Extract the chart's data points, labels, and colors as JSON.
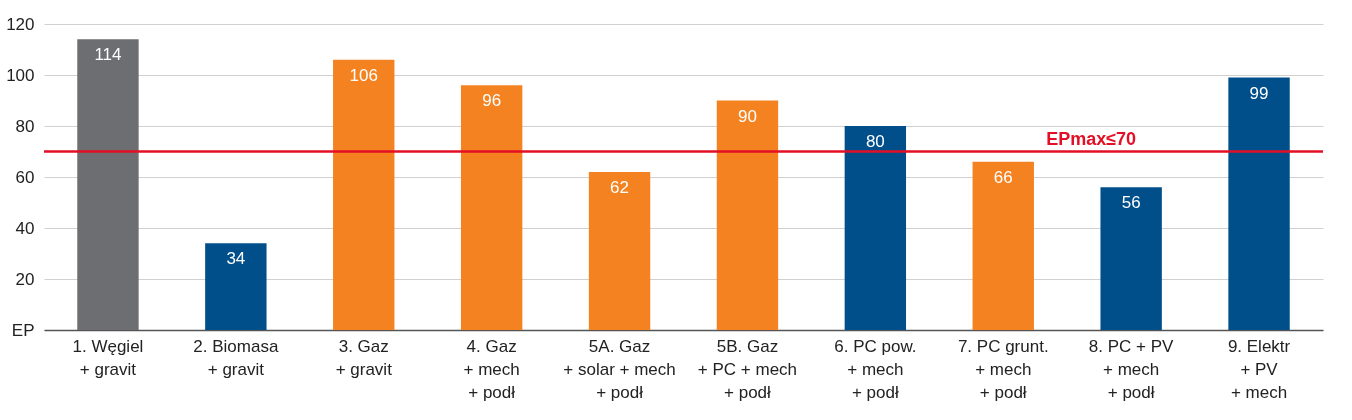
{
  "chart_data": {
    "type": "bar",
    "categories": [
      "1. Węgiel\n+ gravit",
      "2. Biomasa\n+ gravit",
      "3. Gaz\n+ gravit",
      "4. Gaz\n+ mech\n+ podł",
      "5A. Gaz\n+ solar + mech\n+ podł",
      "5B. Gaz\n+ PC + mech\n+ podł",
      "6. PC pow.\n+ mech\n+ podł",
      "7. PC grunt.\n+ mech\n+ podł",
      "8. PC + PV\n+ mech\n+ podł",
      "9. Elektr\n+ PV\n+ mech"
    ],
    "values": [
      114,
      34,
      106,
      96,
      62,
      90,
      80,
      66,
      56,
      99
    ],
    "colors": [
      "#6d6e71",
      "#004f8a",
      "#f58220",
      "#f58220",
      "#f58220",
      "#f58220",
      "#004f8a",
      "#f58220",
      "#004f8a",
      "#004f8a"
    ],
    "ylim": [
      0,
      120
    ],
    "yticks": [
      {
        "value": 0,
        "label": "EP"
      },
      20,
      40,
      60,
      80,
      100,
      120
    ],
    "grid": "y",
    "data_labels": true,
    "ref_lines": [
      {
        "axis": "y",
        "value": 70,
        "label": "EPmax≤70",
        "color": "#e30f26"
      }
    ]
  }
}
